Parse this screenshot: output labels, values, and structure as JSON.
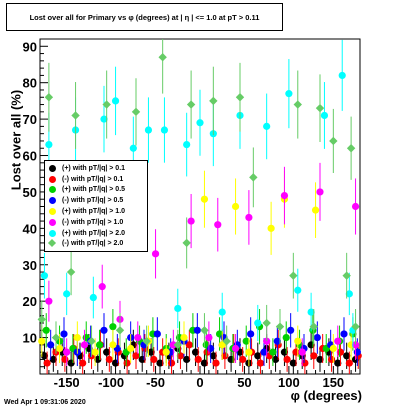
{
  "title": "Lost over all for Primary vs φ (degrees) at | η | <= 1.0 at pT > 0.11",
  "footer": "Wed Apr  1 09:31:06 2020",
  "chart_data": {
    "type": "scatter",
    "xlabel": "φ (degrees)",
    "ylabel": "Lost over all (%)",
    "xlim": [
      -180,
      180
    ],
    "ylim": [
      0,
      92
    ],
    "xticks": [
      -150,
      -100,
      -50,
      0,
      50,
      100,
      150
    ],
    "yticks": [
      10,
      20,
      30,
      40,
      50,
      60,
      70,
      80,
      90
    ],
    "legend_position": "middle-left",
    "series": [
      {
        "name": "(+) with pT/|q| > 0.1",
        "color": "#000000",
        "marker": "circle",
        "points": [
          [
            -175,
            5
          ],
          [
            -165,
            4
          ],
          [
            -155,
            6
          ],
          [
            -145,
            3
          ],
          [
            -135,
            5
          ],
          [
            -125,
            7
          ],
          [
            -115,
            4
          ],
          [
            -105,
            6
          ],
          [
            -95,
            3
          ],
          [
            -85,
            5
          ],
          [
            -75,
            8
          ],
          [
            -65,
            4
          ],
          [
            -55,
            6
          ],
          [
            -45,
            3
          ],
          [
            -35,
            5
          ],
          [
            -25,
            7
          ],
          [
            -15,
            4
          ],
          [
            -5,
            6
          ],
          [
            5,
            3
          ],
          [
            15,
            5
          ],
          [
            25,
            8
          ],
          [
            35,
            4
          ],
          [
            45,
            6
          ],
          [
            55,
            3
          ],
          [
            65,
            5
          ],
          [
            75,
            7
          ],
          [
            85,
            4
          ],
          [
            95,
            6
          ],
          [
            105,
            3
          ],
          [
            115,
            5
          ],
          [
            125,
            8
          ],
          [
            135,
            4
          ],
          [
            145,
            6
          ],
          [
            155,
            3
          ],
          [
            165,
            5
          ],
          [
            175,
            4
          ]
        ]
      },
      {
        "name": "(-) with pT/|q| > 0.1",
        "color": "#ff0000",
        "marker": "circle",
        "points": [
          [
            -172,
            3
          ],
          [
            -162,
            6
          ],
          [
            -152,
            4
          ],
          [
            -142,
            7
          ],
          [
            -132,
            3
          ],
          [
            -122,
            5
          ],
          [
            -112,
            8
          ],
          [
            -102,
            4
          ],
          [
            -92,
            6
          ],
          [
            -82,
            3
          ],
          [
            -72,
            5
          ],
          [
            -62,
            7
          ],
          [
            -52,
            4
          ],
          [
            -42,
            6
          ],
          [
            -32,
            3
          ],
          [
            -22,
            5
          ],
          [
            -12,
            8
          ],
          [
            -2,
            4
          ],
          [
            8,
            6
          ],
          [
            18,
            3
          ],
          [
            28,
            5
          ],
          [
            38,
            7
          ],
          [
            48,
            4
          ],
          [
            58,
            6
          ],
          [
            68,
            3
          ],
          [
            78,
            5
          ],
          [
            88,
            8
          ],
          [
            98,
            4
          ],
          [
            108,
            6
          ],
          [
            118,
            3
          ],
          [
            128,
            5
          ],
          [
            138,
            7
          ],
          [
            148,
            4
          ],
          [
            158,
            6
          ],
          [
            168,
            3
          ],
          [
            178,
            5
          ]
        ]
      },
      {
        "name": "(+) with pT/|q| > 0.5",
        "color": "#00d000",
        "marker": "circle",
        "points": [
          [
            -173,
            12
          ],
          [
            -158,
            9
          ],
          [
            -143,
            7
          ],
          [
            -128,
            10
          ],
          [
            -113,
            8
          ],
          [
            -98,
            13
          ],
          [
            -83,
            6
          ],
          [
            -68,
            9
          ],
          [
            -53,
            11
          ],
          [
            -38,
            7
          ],
          [
            -23,
            10
          ],
          [
            -8,
            12
          ],
          [
            7,
            8
          ],
          [
            22,
            11
          ],
          [
            37,
            7
          ],
          [
            52,
            9
          ],
          [
            67,
            13
          ],
          [
            82,
            6
          ],
          [
            97,
            10
          ],
          [
            112,
            8
          ],
          [
            127,
            12
          ],
          [
            142,
            7
          ],
          [
            157,
            9
          ],
          [
            172,
            11
          ]
        ]
      },
      {
        "name": "(-) with pT/|q| > 0.5",
        "color": "#0000ff",
        "marker": "circle",
        "points": [
          [
            -168,
            8
          ],
          [
            -153,
            11
          ],
          [
            -138,
            6
          ],
          [
            -123,
            9
          ],
          [
            -108,
            12
          ],
          [
            -93,
            7
          ],
          [
            -78,
            10
          ],
          [
            -63,
            8
          ],
          [
            -48,
            11
          ],
          [
            -33,
            6
          ],
          [
            -18,
            9
          ],
          [
            -3,
            12
          ],
          [
            12,
            7
          ],
          [
            27,
            10
          ],
          [
            42,
            8
          ],
          [
            57,
            11
          ],
          [
            72,
            6
          ],
          [
            87,
            9
          ],
          [
            102,
            12
          ],
          [
            117,
            7
          ],
          [
            132,
            10
          ],
          [
            147,
            8
          ],
          [
            162,
            11
          ],
          [
            177,
            6
          ]
        ]
      },
      {
        "name": "(+) with pT/|q| > 1.0",
        "color": "#ffff00",
        "marker": "circle",
        "points": [
          [
            -178,
            9
          ],
          [
            -158,
            7
          ],
          [
            -138,
            10
          ],
          [
            -118,
            6
          ],
          [
            -98,
            8
          ],
          [
            -78,
            7
          ],
          [
            -58,
            9
          ],
          [
            -38,
            6
          ],
          [
            -18,
            10
          ],
          [
            5,
            48
          ],
          [
            25,
            8
          ],
          [
            40,
            46
          ],
          [
            55,
            6
          ],
          [
            80,
            40
          ],
          [
            95,
            48
          ],
          [
            110,
            9
          ],
          [
            130,
            45
          ],
          [
            150,
            7
          ],
          [
            170,
            8
          ]
        ]
      },
      {
        "name": "(-) with pT/|q| > 1.0",
        "color": "#ff00ff",
        "marker": "circle",
        "points": [
          [
            -170,
            20
          ],
          [
            -150,
            6
          ],
          [
            -130,
            8
          ],
          [
            -110,
            24
          ],
          [
            -90,
            15
          ],
          [
            -70,
            10
          ],
          [
            -50,
            33
          ],
          [
            -30,
            8
          ],
          [
            -10,
            42
          ],
          [
            10,
            10
          ],
          [
            20,
            41
          ],
          [
            40,
            7
          ],
          [
            55,
            43
          ],
          [
            75,
            9
          ],
          [
            95,
            49
          ],
          [
            115,
            6
          ],
          [
            135,
            50
          ],
          [
            155,
            9
          ],
          [
            175,
            46
          ],
          [
            175,
            8
          ]
        ]
      },
      {
        "name": "(+) with pT/|q| > 2.0",
        "color": "#00ffff",
        "marker": "circle",
        "points": [
          [
            -175,
            27
          ],
          [
            -170,
            63
          ],
          [
            -150,
            22
          ],
          [
            -140,
            67
          ],
          [
            -120,
            21
          ],
          [
            -108,
            70
          ],
          [
            -95,
            75
          ],
          [
            -75,
            62
          ],
          [
            -58,
            67
          ],
          [
            -40,
            67
          ],
          [
            -25,
            18
          ],
          [
            -15,
            63
          ],
          [
            0,
            69
          ],
          [
            15,
            66
          ],
          [
            25,
            17
          ],
          [
            45,
            71
          ],
          [
            65,
            14
          ],
          [
            75,
            68
          ],
          [
            100,
            77
          ],
          [
            110,
            23
          ],
          [
            125,
            17
          ],
          [
            140,
            71
          ],
          [
            160,
            82
          ],
          [
            168,
            22
          ],
          [
            172,
            12
          ]
        ]
      },
      {
        "name": "(-) with pT/|q| > 2.0",
        "color": "#66cc66",
        "marker": "diamond",
        "points": [
          [
            -178,
            15
          ],
          [
            -170,
            76
          ],
          [
            -162,
            10
          ],
          [
            -145,
            28
          ],
          [
            -140,
            71
          ],
          [
            -122,
            9
          ],
          [
            -105,
            74
          ],
          [
            -90,
            12
          ],
          [
            -72,
            72
          ],
          [
            -60,
            9
          ],
          [
            -42,
            87
          ],
          [
            -25,
            8
          ],
          [
            -15,
            36
          ],
          [
            -10,
            74
          ],
          [
            5,
            12
          ],
          [
            15,
            75
          ],
          [
            30,
            9
          ],
          [
            45,
            76
          ],
          [
            60,
            54
          ],
          [
            75,
            14
          ],
          [
            90,
            13
          ],
          [
            105,
            27
          ],
          [
            110,
            74
          ],
          [
            128,
            13
          ],
          [
            135,
            73
          ],
          [
            150,
            64
          ],
          [
            165,
            27
          ],
          [
            170,
            62
          ],
          [
            175,
            13
          ]
        ]
      }
    ]
  }
}
